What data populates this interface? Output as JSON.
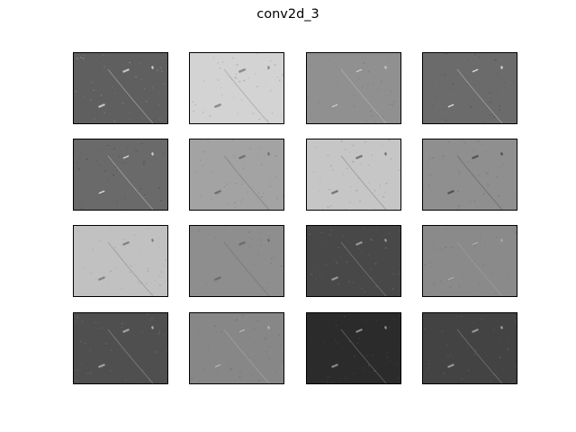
{
  "figure": {
    "title": "conv2d_3"
  },
  "grid": {
    "rows": 4,
    "cols": 4
  },
  "panels": [
    {
      "base": "#5f5f5f",
      "feature": "#c8c8c8",
      "speck": "#858585"
    },
    {
      "base": "#d3d3d3",
      "feature": "#8a8a8a",
      "speck": "#a0a0a0"
    },
    {
      "base": "#909090",
      "feature": "#c4c4c4",
      "speck": "#7e7e7e"
    },
    {
      "base": "#6b6b6b",
      "feature": "#cfcfcf",
      "speck": "#545454"
    },
    {
      "base": "#6a6a6a",
      "feature": "#cdcdcd",
      "speck": "#505050"
    },
    {
      "base": "#a3a3a3",
      "feature": "#6d6d6d",
      "speck": "#8a8a8a"
    },
    {
      "base": "#c6c6c6",
      "feature": "#727272",
      "speck": "#9a9a9a"
    },
    {
      "base": "#8f8f8f",
      "feature": "#4f4f4f",
      "speck": "#777777"
    },
    {
      "base": "#c1c1c1",
      "feature": "#7f7f7f",
      "speck": "#a5a5a5"
    },
    {
      "base": "#8e8e8e",
      "feature": "#6a6a6a",
      "speck": "#7e7e7e"
    },
    {
      "base": "#484848",
      "feature": "#9a9a9a",
      "speck": "#6a6a6a"
    },
    {
      "base": "#8a8a8a",
      "feature": "#a9a9a9",
      "speck": "#7a7a7a"
    },
    {
      "base": "#4f4f4f",
      "feature": "#a7a7a7",
      "speck": "#6b6b6b"
    },
    {
      "base": "#878787",
      "feature": "#b3b3b3",
      "speck": "#727272"
    },
    {
      "base": "#2b2b2b",
      "feature": "#8f8f8f",
      "speck": "#4a4a4a"
    },
    {
      "base": "#434343",
      "feature": "#9b9b9b",
      "speck": "#5c5c5c"
    }
  ]
}
